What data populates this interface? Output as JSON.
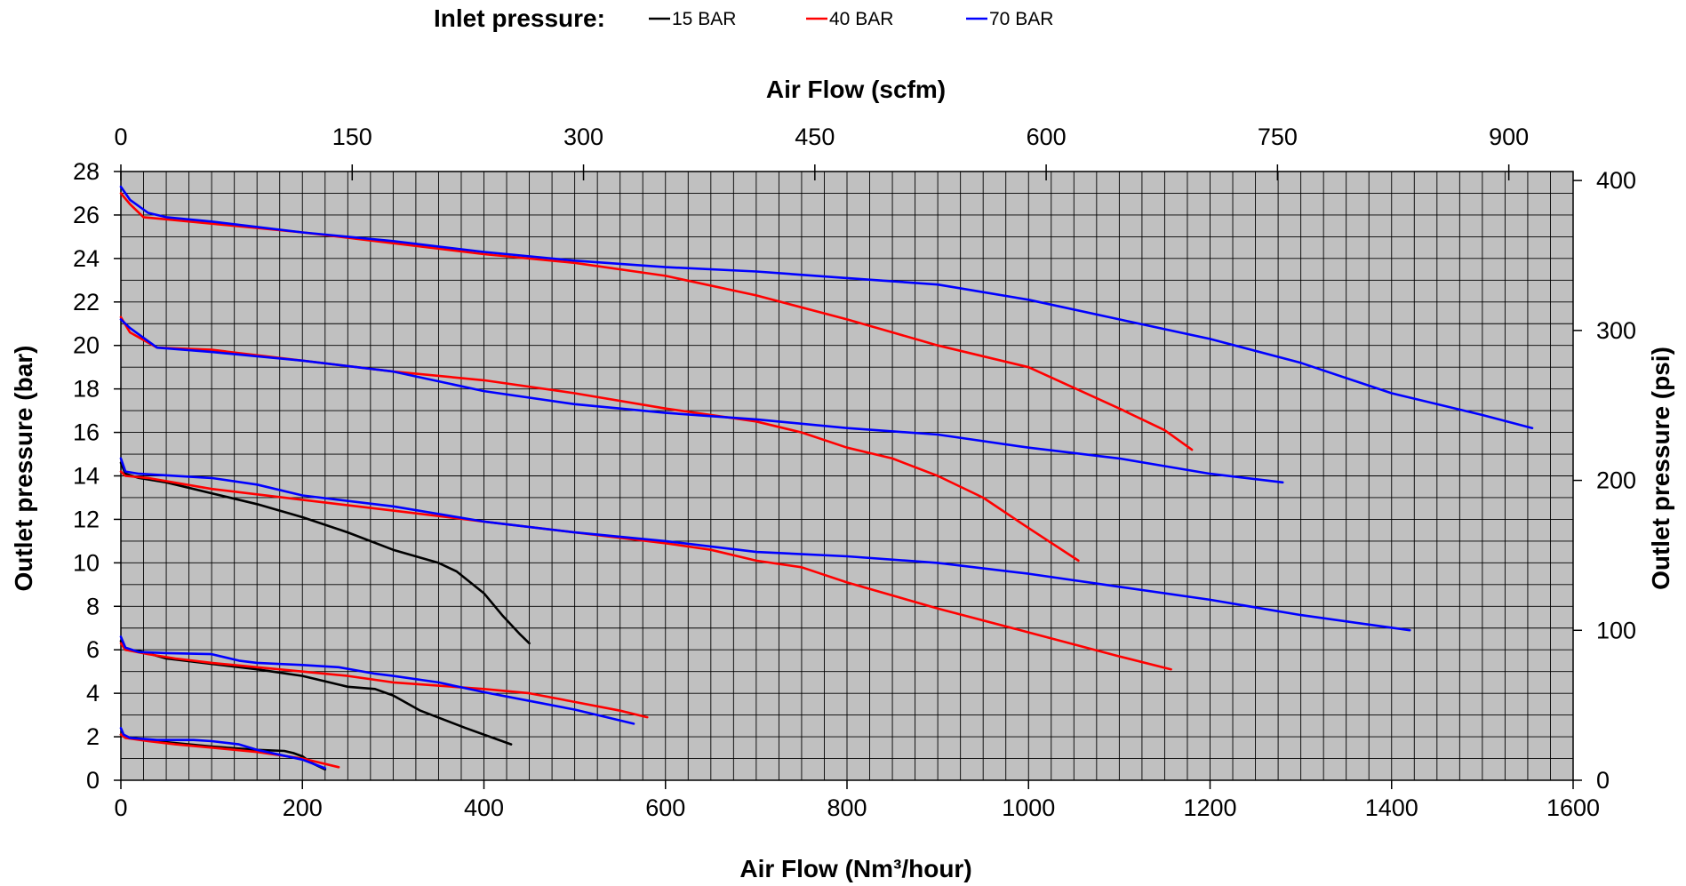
{
  "chart_data": {
    "type": "line",
    "legend": {
      "title": "Inlet pressure:",
      "placement": "top",
      "entries": [
        {
          "label": "15 BAR",
          "color": "#000000"
        },
        {
          "label": "40 BAR",
          "color": "#ff0000"
        },
        {
          "label": "70 BAR",
          "color": "#0000ff"
        }
      ]
    },
    "axes": {
      "x_bottom": {
        "label": "Air Flow (Nm³/hour)",
        "range": [
          0,
          1600
        ],
        "ticks": [
          0,
          200,
          400,
          600,
          800,
          1000,
          1200,
          1400,
          1600
        ]
      },
      "x_top": {
        "label": "Air Flow (scfm)",
        "range": [
          0,
          941.7
        ],
        "ticks": [
          0,
          150,
          300,
          450,
          600,
          750,
          900
        ]
      },
      "y_left": {
        "label": "Outlet pressure (bar)",
        "range": [
          0,
          28
        ],
        "ticks": [
          0,
          2,
          4,
          6,
          8,
          10,
          12,
          14,
          16,
          18,
          20,
          22,
          24,
          26,
          28
        ]
      },
      "y_right": {
        "label": "Outlet pressure (psi)",
        "range": [
          0,
          406
        ],
        "ticks": [
          0,
          100,
          200,
          300,
          400
        ]
      }
    },
    "grid": true,
    "plot_background": "#c0c0c0",
    "series": [
      {
        "name": "15 BAR",
        "color": "#000000",
        "x": [
          0,
          5,
          20,
          50,
          100,
          150,
          180,
          190,
          200,
          210,
          225
        ],
        "y": [
          2.1,
          2.0,
          1.9,
          1.75,
          1.55,
          1.4,
          1.35,
          1.25,
          1.1,
          0.8,
          0.5
        ]
      },
      {
        "name": "40 BAR",
        "color": "#ff0000",
        "x": [
          0,
          5,
          30,
          60,
          100,
          150,
          200,
          240
        ],
        "y": [
          2.1,
          1.95,
          1.8,
          1.65,
          1.5,
          1.3,
          1.0,
          0.6
        ]
      },
      {
        "name": "70 BAR",
        "color": "#0000ff",
        "x": [
          0,
          3,
          10,
          40,
          80,
          100,
          130,
          150,
          200,
          225
        ],
        "y": [
          2.4,
          2.1,
          1.95,
          1.85,
          1.85,
          1.8,
          1.65,
          1.4,
          0.95,
          0.55
        ]
      },
      {
        "name": "15 BAR",
        "color": "#000000",
        "x": [
          0,
          5,
          20,
          50,
          100,
          150,
          200,
          250,
          280,
          300,
          330,
          380,
          430
        ],
        "y": [
          6.4,
          6.0,
          5.95,
          5.6,
          5.35,
          5.1,
          4.8,
          4.3,
          4.2,
          3.9,
          3.2,
          2.4,
          1.65
        ]
      },
      {
        "name": "40 BAR",
        "color": "#ff0000",
        "x": [
          0,
          5,
          30,
          60,
          100,
          150,
          200,
          250,
          300,
          350,
          400,
          450,
          500,
          550,
          580
        ],
        "y": [
          6.3,
          6.0,
          5.8,
          5.6,
          5.4,
          5.2,
          5.0,
          4.8,
          4.5,
          4.35,
          4.2,
          4.0,
          3.6,
          3.2,
          2.9
        ]
      },
      {
        "name": "70 BAR",
        "color": "#0000ff",
        "x": [
          0,
          5,
          20,
          50,
          100,
          130,
          150,
          200,
          240,
          280,
          300,
          350,
          400,
          450,
          500,
          565
        ],
        "y": [
          6.6,
          6.1,
          5.9,
          5.85,
          5.8,
          5.5,
          5.4,
          5.3,
          5.2,
          4.9,
          4.8,
          4.5,
          4.05,
          3.65,
          3.25,
          2.6
        ]
      },
      {
        "name": "15 BAR",
        "color": "#000000",
        "x": [
          0,
          5,
          20,
          50,
          100,
          150,
          200,
          250,
          300,
          350,
          370,
          400,
          420,
          440,
          450
        ],
        "y": [
          14.6,
          14.1,
          13.9,
          13.7,
          13.2,
          12.7,
          12.1,
          11.4,
          10.6,
          10.0,
          9.6,
          8.6,
          7.6,
          6.7,
          6.3
        ]
      },
      {
        "name": "40 BAR",
        "color": "#ff0000",
        "x": [
          0,
          5,
          30,
          100,
          200,
          300,
          400,
          500,
          600,
          650,
          700,
          750,
          800,
          900,
          1000,
          1100,
          1157
        ],
        "y": [
          14.2,
          14.0,
          13.9,
          13.4,
          12.9,
          12.4,
          11.9,
          11.4,
          10.9,
          10.6,
          10.1,
          9.8,
          9.1,
          7.9,
          6.8,
          5.7,
          5.1
        ]
      },
      {
        "name": "70 BAR",
        "color": "#0000ff",
        "x": [
          0,
          5,
          20,
          100,
          150,
          200,
          300,
          400,
          500,
          600,
          700,
          800,
          900,
          1000,
          1100,
          1200,
          1300,
          1420
        ],
        "y": [
          14.8,
          14.2,
          14.1,
          13.9,
          13.6,
          13.1,
          12.6,
          11.9,
          11.4,
          11.0,
          10.5,
          10.3,
          10.0,
          9.5,
          8.9,
          8.3,
          7.6,
          6.9
        ]
      },
      {
        "name": "40 BAR",
        "color": "#ff0000",
        "x": [
          0,
          10,
          40,
          100,
          200,
          300,
          400,
          500,
          600,
          700,
          750,
          800,
          850,
          900,
          950,
          1000,
          1055
        ],
        "y": [
          21.3,
          20.6,
          19.9,
          19.8,
          19.3,
          18.8,
          18.4,
          17.8,
          17.1,
          16.5,
          16.0,
          15.3,
          14.8,
          14.0,
          13.0,
          11.6,
          10.1
        ]
      },
      {
        "name": "70 BAR",
        "color": "#0000ff",
        "x": [
          0,
          10,
          40,
          100,
          200,
          300,
          400,
          500,
          600,
          700,
          800,
          900,
          1000,
          1100,
          1200,
          1280
        ],
        "y": [
          21.2,
          20.8,
          19.9,
          19.7,
          19.3,
          18.8,
          17.9,
          17.3,
          16.9,
          16.6,
          16.2,
          15.9,
          15.3,
          14.8,
          14.1,
          13.7
        ]
      },
      {
        "name": "40 BAR",
        "color": "#ff0000",
        "x": [
          0,
          10,
          25,
          50,
          100,
          200,
          300,
          400,
          500,
          600,
          700,
          800,
          850,
          900,
          1000,
          1100,
          1150,
          1180
        ],
        "y": [
          27.0,
          26.5,
          25.9,
          25.8,
          25.6,
          25.2,
          24.7,
          24.2,
          23.8,
          23.2,
          22.3,
          21.2,
          20.6,
          20.0,
          19.0,
          17.1,
          16.1,
          15.2
        ]
      },
      {
        "name": "70 BAR",
        "color": "#0000ff",
        "x": [
          0,
          10,
          30,
          50,
          100,
          200,
          300,
          400,
          500,
          600,
          700,
          800,
          900,
          1000,
          1100,
          1200,
          1300,
          1400,
          1500,
          1555
        ],
        "y": [
          27.3,
          26.7,
          26.1,
          25.9,
          25.7,
          25.2,
          24.8,
          24.3,
          23.9,
          23.6,
          23.4,
          23.1,
          22.8,
          22.1,
          21.2,
          20.3,
          19.2,
          17.8,
          16.8,
          16.2
        ]
      }
    ]
  }
}
